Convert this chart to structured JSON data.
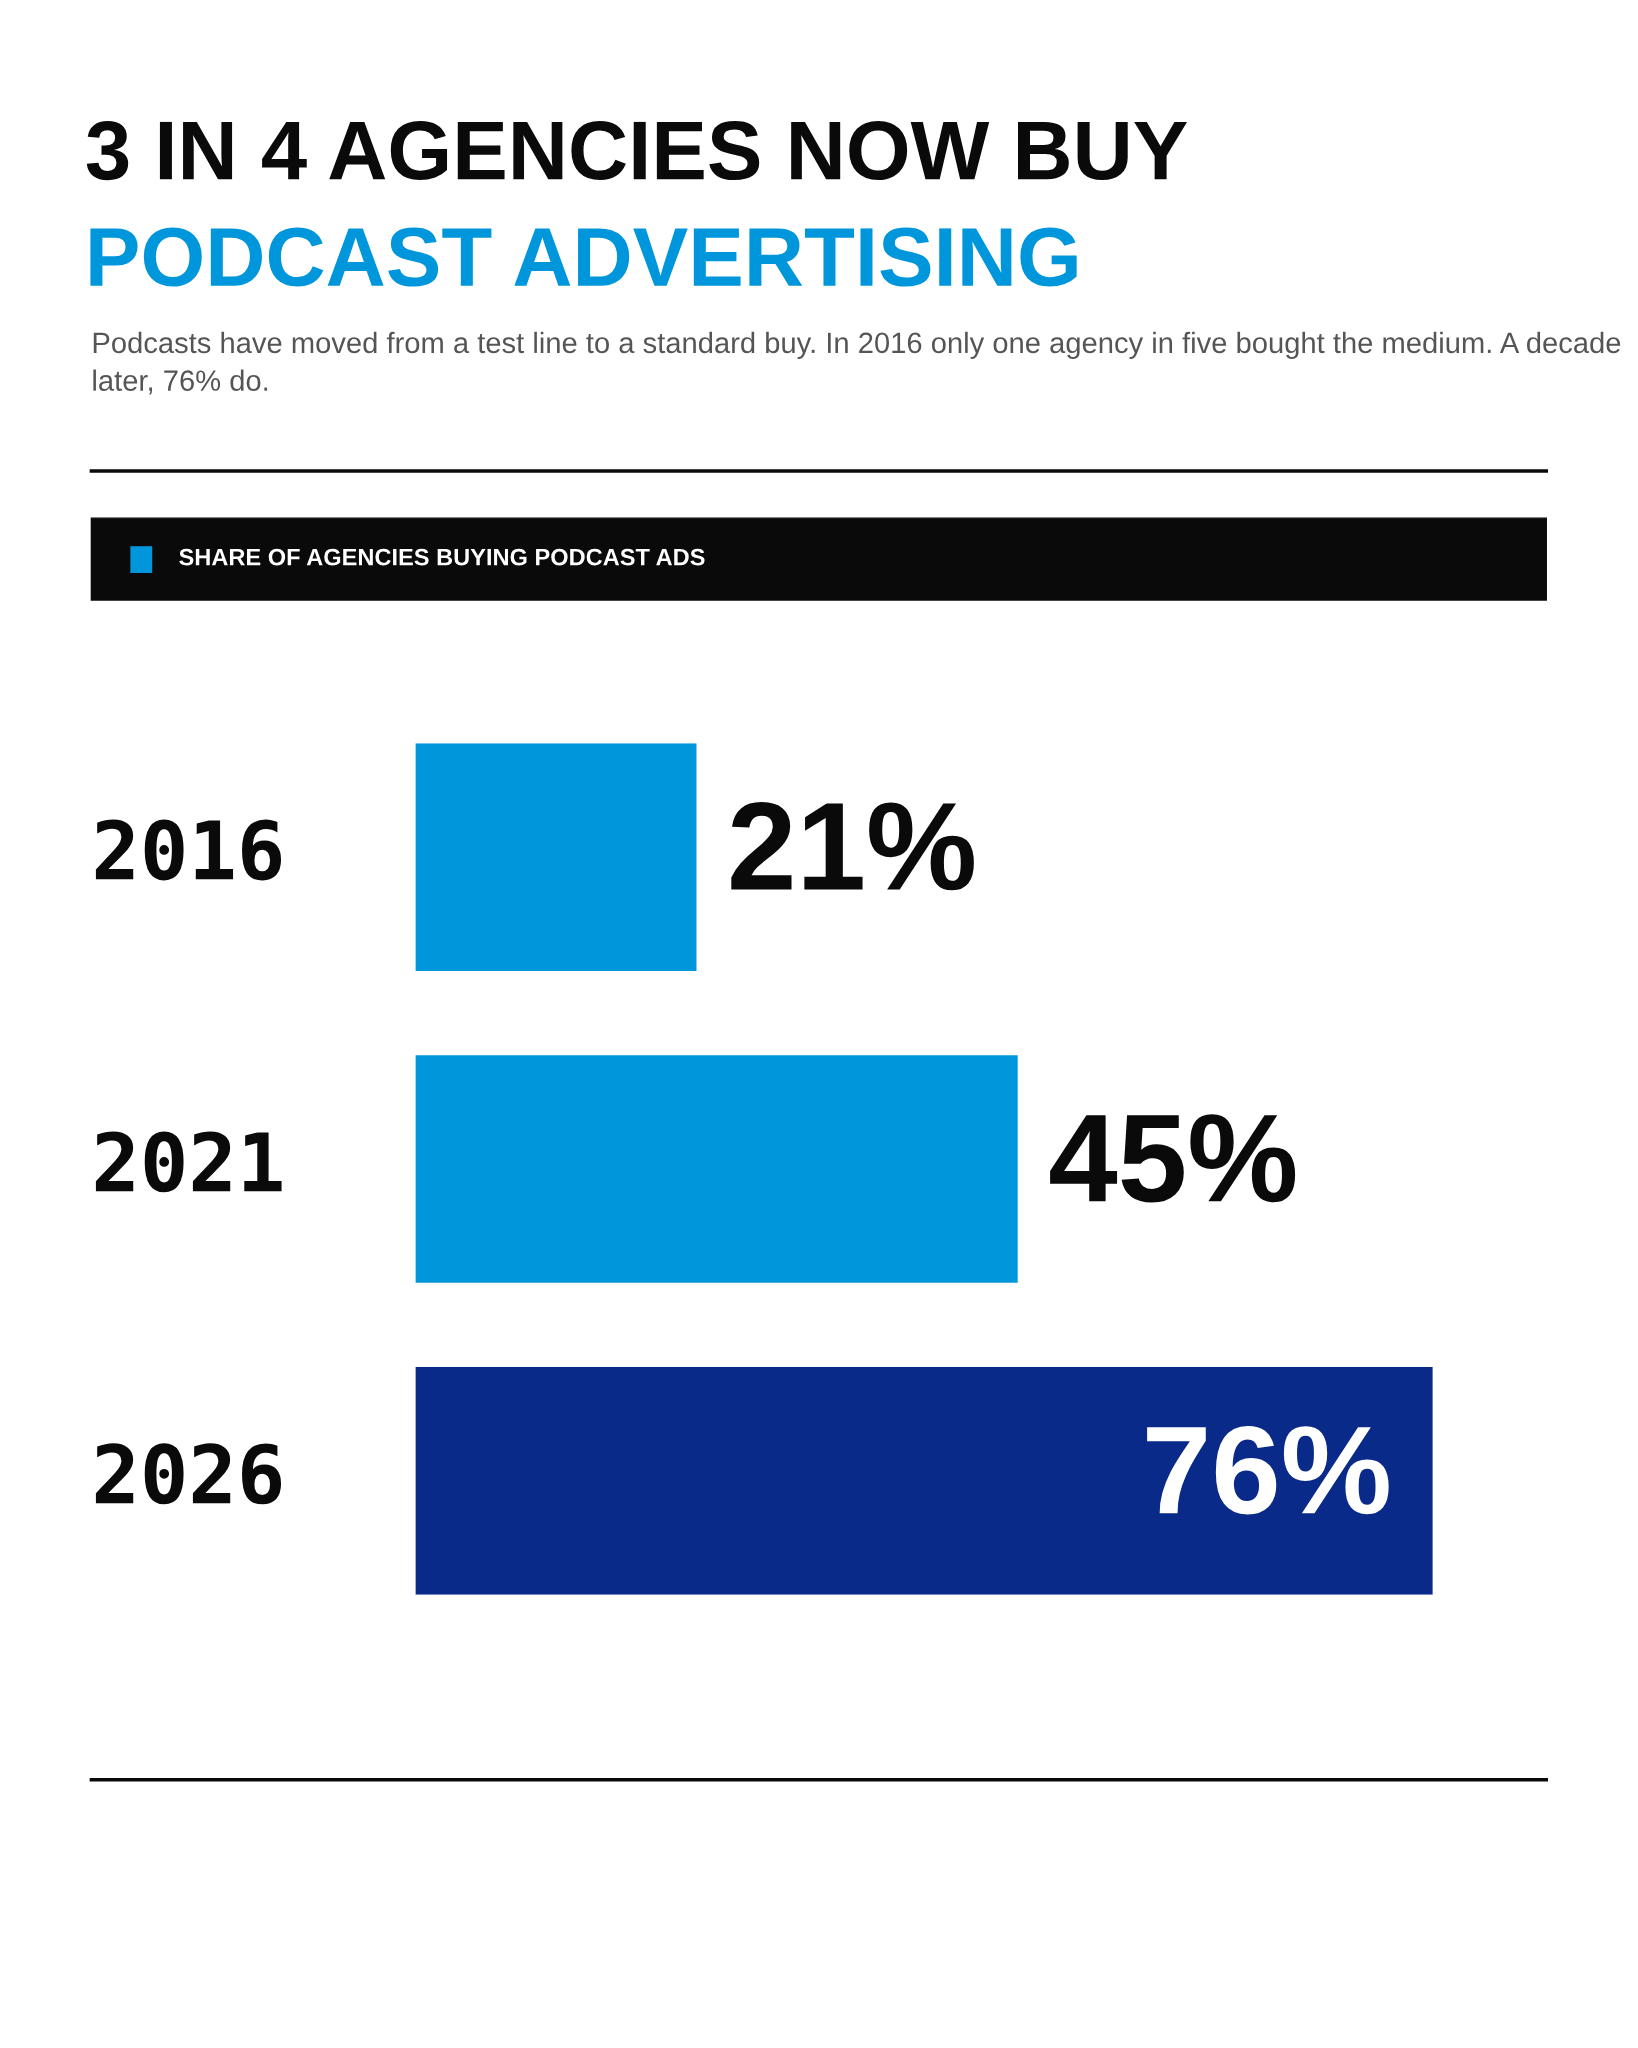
{
  "chart_data": {
    "type": "bar",
    "orientation": "horizontal",
    "title": "3 IN 4 AGENCIES NOW BUY\nPODCAST ADVERTISING",
    "subtitle": "Podcasts have moved from a test line to a standard buy. In 2016 only one agency in five bought the medium. A decade later, 76% do.",
    "categories": [
      "2016",
      "2021",
      "2026"
    ],
    "series": [
      {
        "name": "SHARE OF AGENCIES BUYING PODCAST ADS",
        "color": "#0096dc",
        "colors": [
          "#0096dc",
          "#0096dc",
          "#0a2a8a"
        ],
        "values": [
          21,
          45,
          76
        ],
        "value_labels": [
          "21%",
          "45%",
          "76%"
        ]
      }
    ],
    "legend": "top"
  }
}
